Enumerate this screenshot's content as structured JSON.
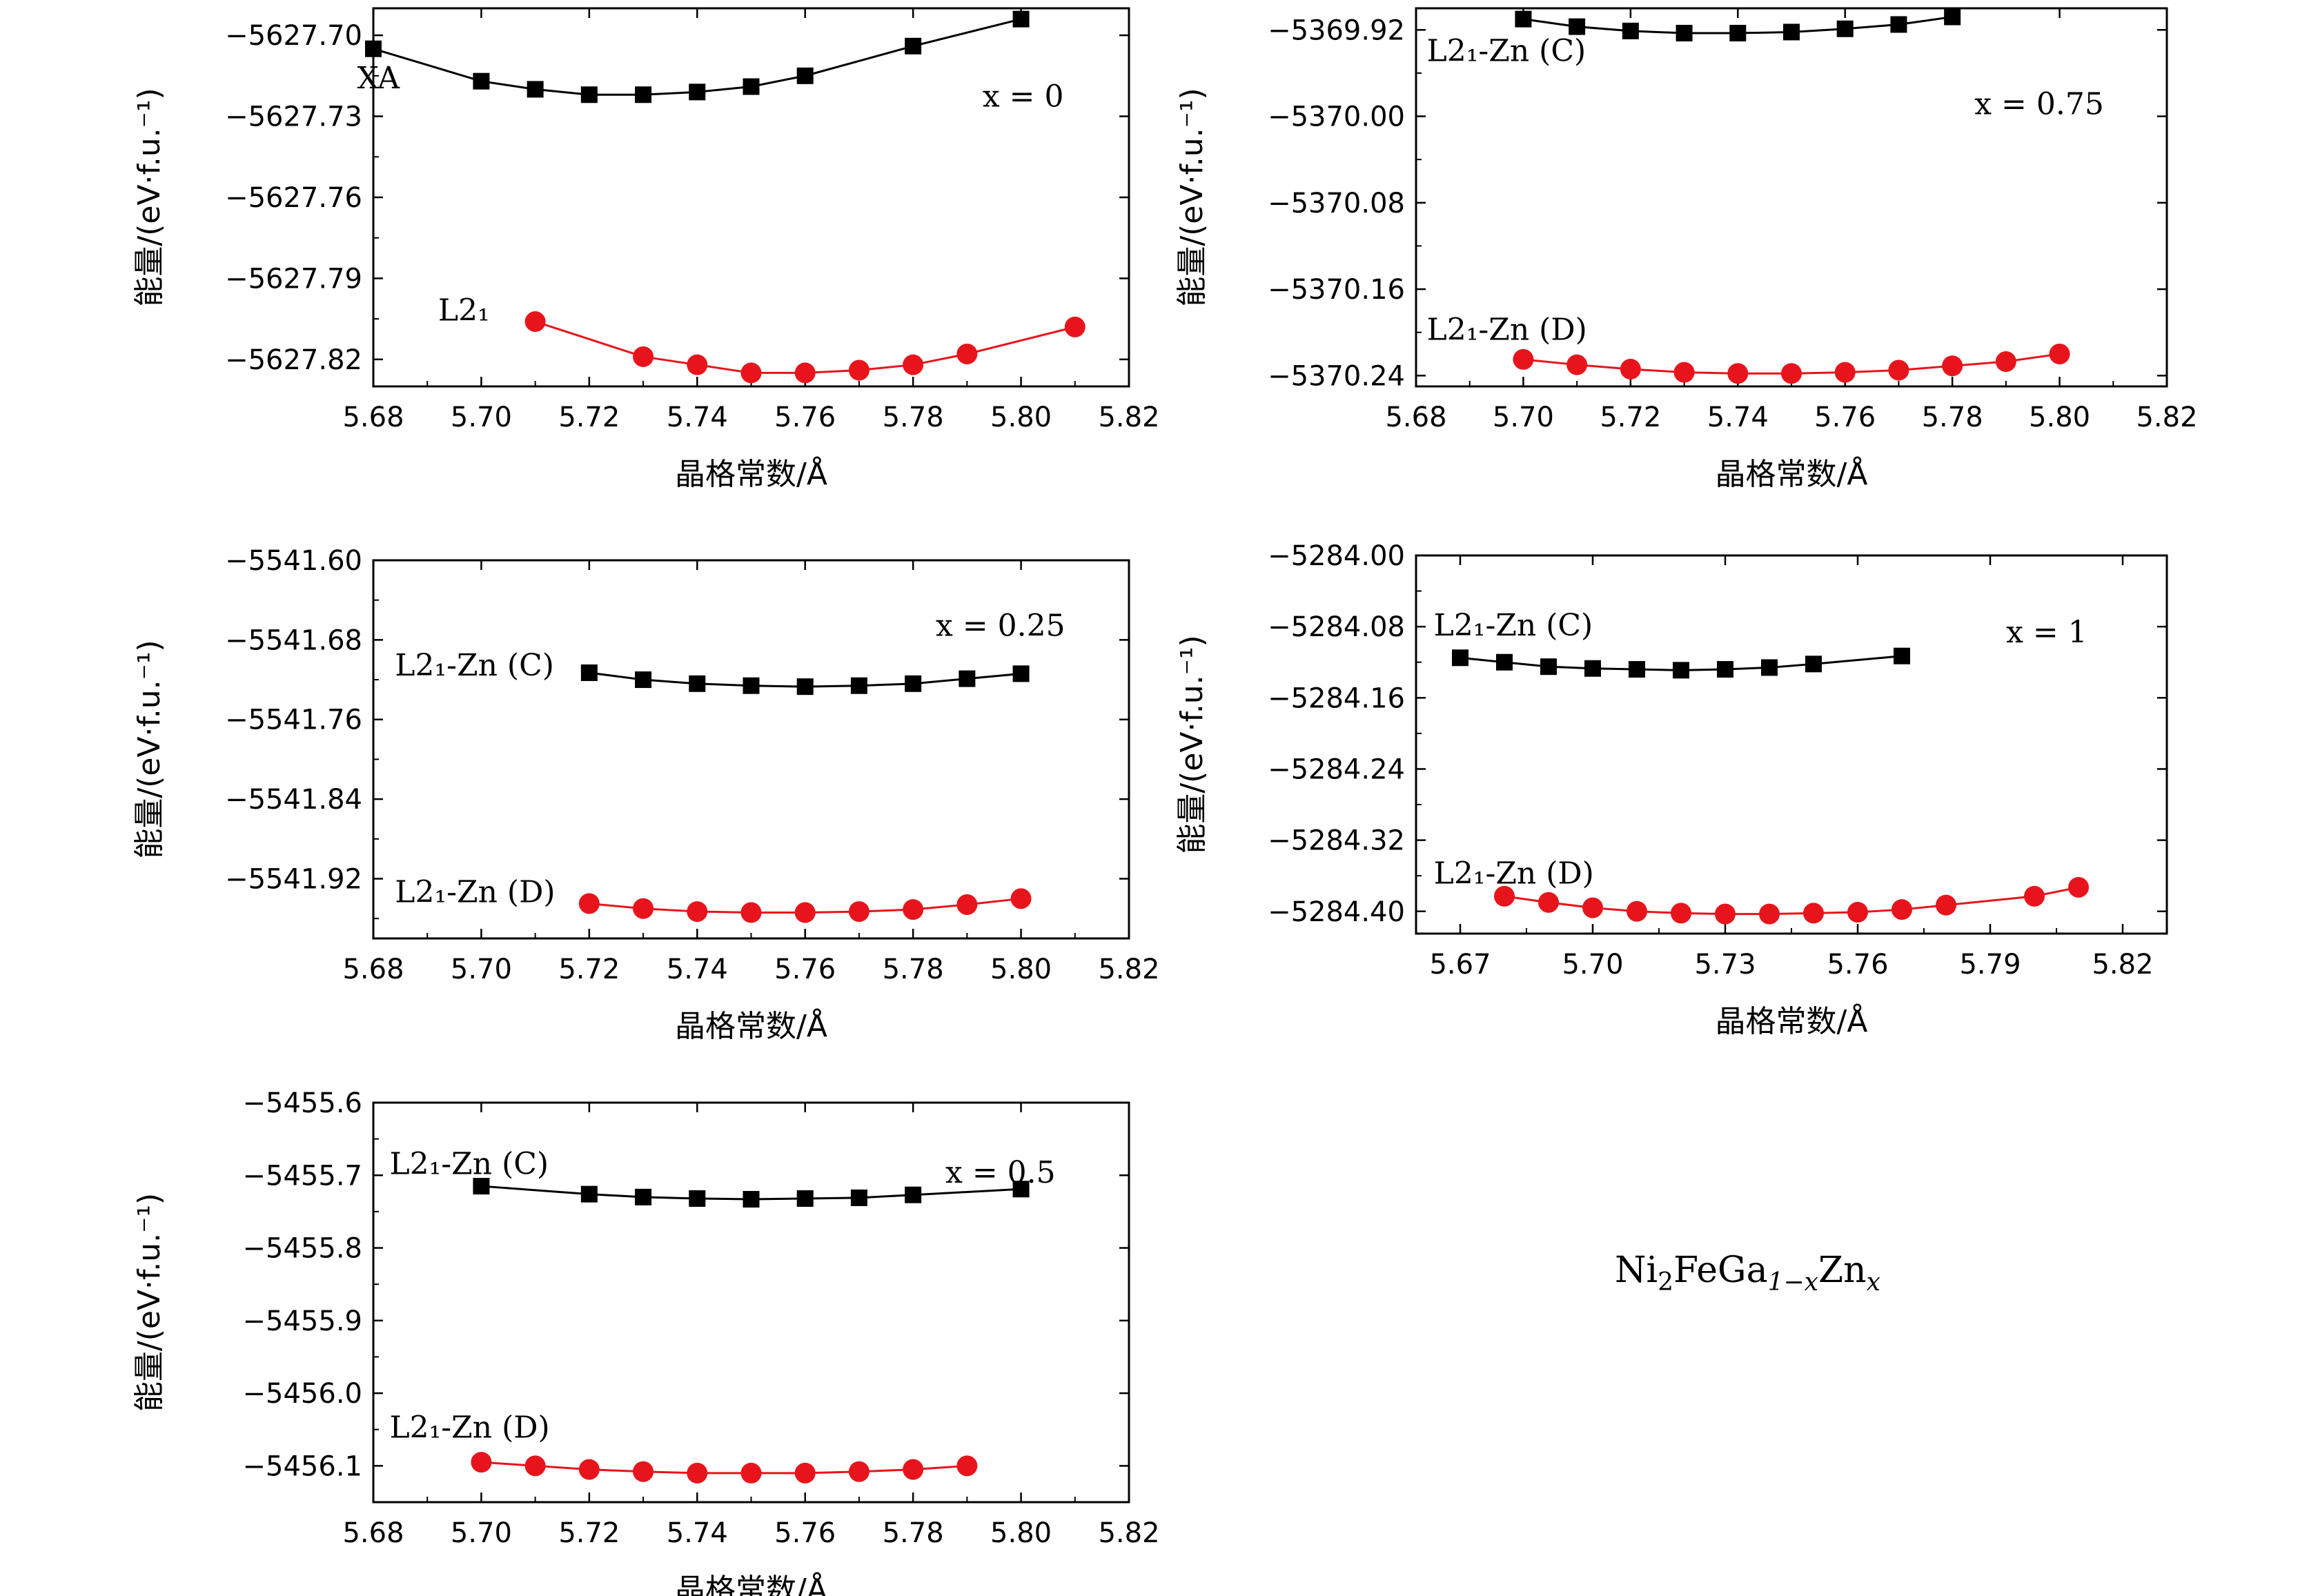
{
  "figure_caption": {
    "base": "Ni",
    "sub1": "2",
    "mid": "FeGa",
    "sub2": "1−x",
    "end": "Zn",
    "sub3": "x"
  },
  "chart_data": [
    {
      "type": "line",
      "xlabel": "晶格常数/Å",
      "ylabel": "能量/(eV·f.u.⁻¹)",
      "annotation": "x = 0",
      "xlim": [
        5.68,
        5.82
      ],
      "ylim": [
        -5627.83,
        -5627.69
      ],
      "xticks": [
        "5.68",
        "5.70",
        "5.72",
        "5.74",
        "5.76",
        "5.78",
        "5.80",
        "5.82"
      ],
      "yticks": [
        "−5627.70",
        "−5627.73",
        "−5627.76",
        "−5627.79",
        "−5627.82"
      ],
      "series": [
        {
          "name": "XA",
          "color": "#000000",
          "marker": "square",
          "x": [
            5.68,
            5.7,
            5.71,
            5.72,
            5.73,
            5.74,
            5.75,
            5.76,
            5.78,
            5.8
          ],
          "y": [
            -5627.705,
            -5627.717,
            -5627.72,
            -5627.722,
            -5627.722,
            -5627.721,
            -5627.719,
            -5627.715,
            -5627.704,
            -5627.694
          ]
        },
        {
          "name": "L2₁",
          "color": "#e8141c",
          "marker": "circle",
          "x": [
            5.71,
            5.73,
            5.74,
            5.75,
            5.76,
            5.77,
            5.78,
            5.79,
            5.81
          ],
          "y": [
            -5627.806,
            -5627.819,
            -5627.822,
            -5627.825,
            -5627.825,
            -5627.824,
            -5627.822,
            -5627.818,
            -5627.808
          ]
        }
      ]
    },
    {
      "type": "line",
      "xlabel": "晶格常数/Å",
      "ylabel": "能量/(eV·f.u.⁻¹)",
      "annotation": "x = 0.75",
      "xlim": [
        5.68,
        5.82
      ],
      "ylim": [
        -5370.25,
        -5369.9
      ],
      "xticks": [
        "5.68",
        "5.70",
        "5.72",
        "5.74",
        "5.76",
        "5.78",
        "5.80",
        "5.82"
      ],
      "yticks": [
        "−5369.92",
        "−5370.00",
        "−5370.08",
        "−5370.16",
        "−5370.24"
      ],
      "series": [
        {
          "name": "L2₁-Zn (C)",
          "color": "#000000",
          "marker": "square",
          "x": [
            5.7,
            5.71,
            5.72,
            5.73,
            5.74,
            5.75,
            5.76,
            5.77,
            5.78
          ],
          "y": [
            -5369.91,
            -5369.917,
            -5369.921,
            -5369.923,
            -5369.923,
            -5369.922,
            -5369.919,
            -5369.915,
            -5369.908
          ]
        },
        {
          "name": "L2₁-Zn (D)",
          "color": "#e8141c",
          "marker": "circle",
          "x": [
            5.7,
            5.71,
            5.72,
            5.73,
            5.74,
            5.75,
            5.76,
            5.77,
            5.78,
            5.79,
            5.8
          ],
          "y": [
            -5370.225,
            -5370.23,
            -5370.234,
            -5370.237,
            -5370.238,
            -5370.238,
            -5370.237,
            -5370.235,
            -5370.231,
            -5370.227,
            -5370.22
          ]
        }
      ]
    },
    {
      "type": "line",
      "xlabel": "晶格常数/Å",
      "ylabel": "能量/(eV·f.u.⁻¹)",
      "annotation": "x = 0.25",
      "xlim": [
        5.68,
        5.82
      ],
      "ylim": [
        -5541.98,
        -5541.6
      ],
      "xticks": [
        "5.68",
        "5.70",
        "5.72",
        "5.74",
        "5.76",
        "5.78",
        "5.80",
        "5.82"
      ],
      "yticks": [
        "−5541.60",
        "−5541.68",
        "−5541.76",
        "−5541.84",
        "−5541.92"
      ],
      "series": [
        {
          "name": "L2₁-Zn (C)",
          "color": "#000000",
          "marker": "square",
          "x": [
            5.72,
            5.73,
            5.74,
            5.75,
            5.76,
            5.77,
            5.78,
            5.79,
            5.8
          ],
          "y": [
            -5541.713,
            -5541.72,
            -5541.724,
            -5541.726,
            -5541.727,
            -5541.726,
            -5541.724,
            -5541.719,
            -5541.714
          ]
        },
        {
          "name": "L2₁-Zn (D)",
          "color": "#e8141c",
          "marker": "circle",
          "x": [
            5.72,
            5.73,
            5.74,
            5.75,
            5.76,
            5.77,
            5.78,
            5.79,
            5.8
          ],
          "y": [
            -5541.945,
            -5541.95,
            -5541.953,
            -5541.954,
            -5541.954,
            -5541.953,
            -5541.951,
            -5541.946,
            -5541.94
          ]
        }
      ]
    },
    {
      "type": "line",
      "xlabel": "晶格常数/Å",
      "ylabel": "能量/(eV·f.u.⁻¹)",
      "annotation": "x = 1",
      "xlim": [
        5.66,
        5.83
      ],
      "ylim": [
        -5284.425,
        -5284.0
      ],
      "xticks": [
        "5.67",
        "5.70",
        "5.73",
        "5.76",
        "5.79",
        "5.82"
      ],
      "yticks": [
        "−5284.00",
        "−5284.08",
        "−5284.16",
        "−5284.24",
        "−5284.32",
        "−5284.40"
      ],
      "series": [
        {
          "name": "L2₁-Zn (C)",
          "color": "#000000",
          "marker": "square",
          "x": [
            5.67,
            5.68,
            5.69,
            5.7,
            5.71,
            5.72,
            5.73,
            5.74,
            5.75,
            5.77
          ],
          "y": [
            -5284.115,
            -5284.12,
            -5284.125,
            -5284.127,
            -5284.128,
            -5284.129,
            -5284.128,
            -5284.126,
            -5284.122,
            -5284.113
          ]
        },
        {
          "name": "L2₁-Zn (D)",
          "color": "#e8141c",
          "marker": "circle",
          "x": [
            5.68,
            5.69,
            5.7,
            5.71,
            5.72,
            5.73,
            5.74,
            5.75,
            5.76,
            5.77,
            5.78,
            5.8,
            5.81
          ],
          "y": [
            -5284.383,
            -5284.39,
            -5284.396,
            -5284.4,
            -5284.402,
            -5284.403,
            -5284.403,
            -5284.402,
            -5284.401,
            -5284.398,
            -5284.393,
            -5284.383,
            -5284.373
          ]
        }
      ]
    },
    {
      "type": "line",
      "xlabel": "晶格常数/Å",
      "ylabel": "能量/(eV·f.u.⁻¹)",
      "annotation": "x = 0.5",
      "xlim": [
        5.68,
        5.82
      ],
      "ylim": [
        -5456.15,
        -5455.6
      ],
      "xticks": [
        "5.68",
        "5.70",
        "5.72",
        "5.74",
        "5.76",
        "5.78",
        "5.80",
        "5.82"
      ],
      "yticks": [
        "−5455.6",
        "−5455.7",
        "−5455.8",
        "−5455.9",
        "−5456.0",
        "−5456.1"
      ],
      "series": [
        {
          "name": "L2₁-Zn (C)",
          "color": "#000000",
          "marker": "square",
          "x": [
            5.7,
            5.72,
            5.73,
            5.74,
            5.75,
            5.76,
            5.77,
            5.78,
            5.8
          ],
          "y": [
            -5455.715,
            -5455.726,
            -5455.73,
            -5455.732,
            -5455.733,
            -5455.732,
            -5455.731,
            -5455.727,
            -5455.719
          ]
        },
        {
          "name": "L2₁-Zn (D)",
          "color": "#e8141c",
          "marker": "circle",
          "x": [
            5.7,
            5.71,
            5.72,
            5.73,
            5.74,
            5.75,
            5.76,
            5.77,
            5.78,
            5.79
          ],
          "y": [
            -5456.095,
            -5456.1,
            -5456.105,
            -5456.108,
            -5456.11,
            -5456.11,
            -5456.11,
            -5456.108,
            -5456.105,
            -5456.1
          ]
        }
      ]
    }
  ]
}
